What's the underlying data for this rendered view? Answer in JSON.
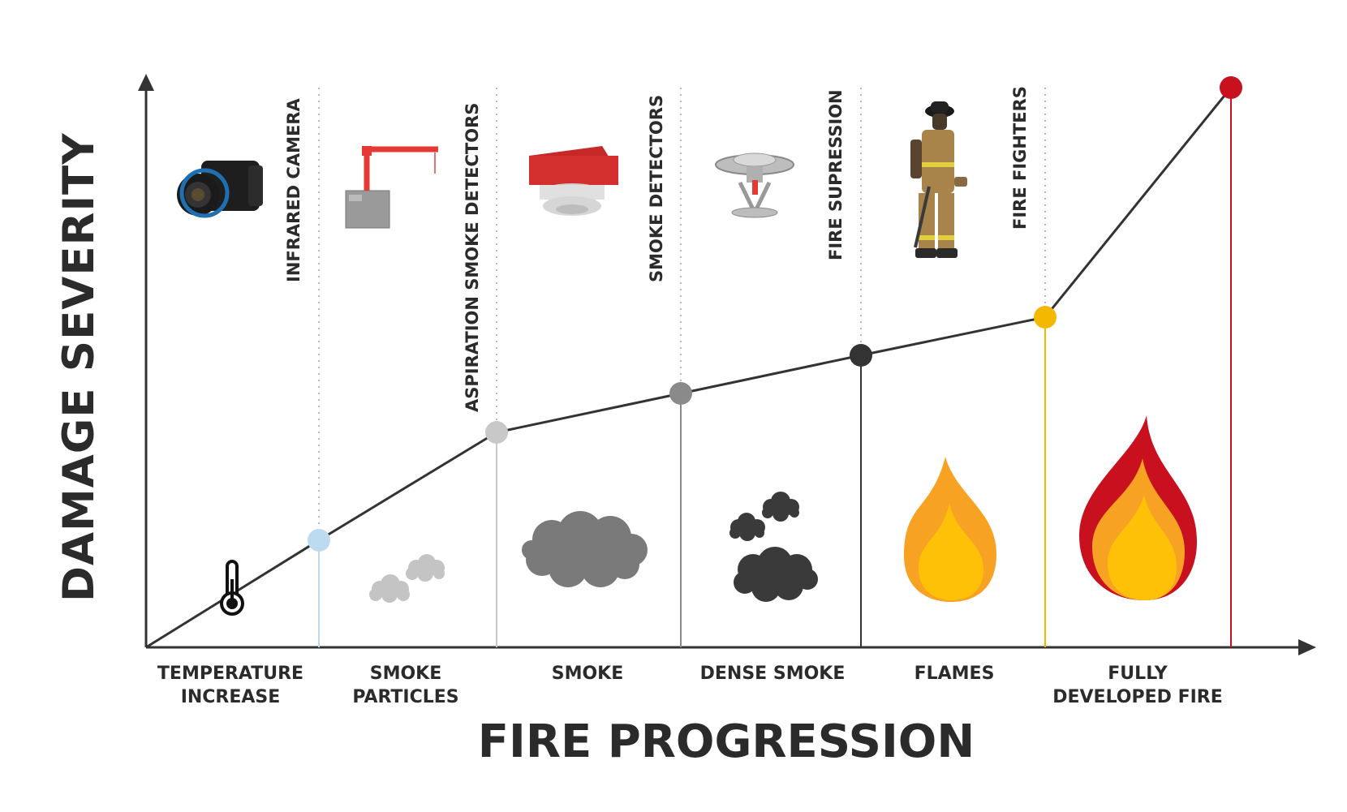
{
  "axes": {
    "y_title": "DAMAGE SEVERITY",
    "x_title": "FIRE PROGRESSION"
  },
  "stages": [
    {
      "label": "TEMPERATURE\nINCREASE",
      "icon": "thermometer-icon"
    },
    {
      "label": "SMOKE\nPARTICLES",
      "icon": "smoke-particles-icon"
    },
    {
      "label": "SMOKE",
      "icon": "smoke-cloud-icon"
    },
    {
      "label": "DENSE SMOKE",
      "icon": "dense-smoke-icon"
    },
    {
      "label": "FLAMES",
      "icon": "flame-icon"
    },
    {
      "label": "FULLY\nDEVELOPED FIRE",
      "icon": "large-fire-icon"
    }
  ],
  "devices": [
    {
      "label": "INFRARED CAMERA",
      "icon": "infrared-camera-icon"
    },
    {
      "label": "ASPIRATION SMOKE DETECTORS",
      "icon": "aspiration-detector-icon"
    },
    {
      "label": "SMOKE DETECTORS",
      "icon": "smoke-detector-icon"
    },
    {
      "label": "FIRE SUPRESSION",
      "icon": "sprinkler-icon"
    },
    {
      "label": "FIRE FIGHTERS",
      "icon": "firefighter-icon"
    }
  ],
  "colors": {
    "line": "#333333",
    "points": [
      "#bcdaf0",
      "#c8c8c8",
      "#8a8a8a",
      "#333333",
      "#f5b800",
      "#c8101e"
    ],
    "smoke_light": "#c4c4c4",
    "smoke_mid": "#7a7a7a",
    "smoke_dark": "#3a3a3a",
    "flame_orange": "#f7a223",
    "flame_yellow": "#ffc107",
    "flame_red": "#c8101e"
  }
}
